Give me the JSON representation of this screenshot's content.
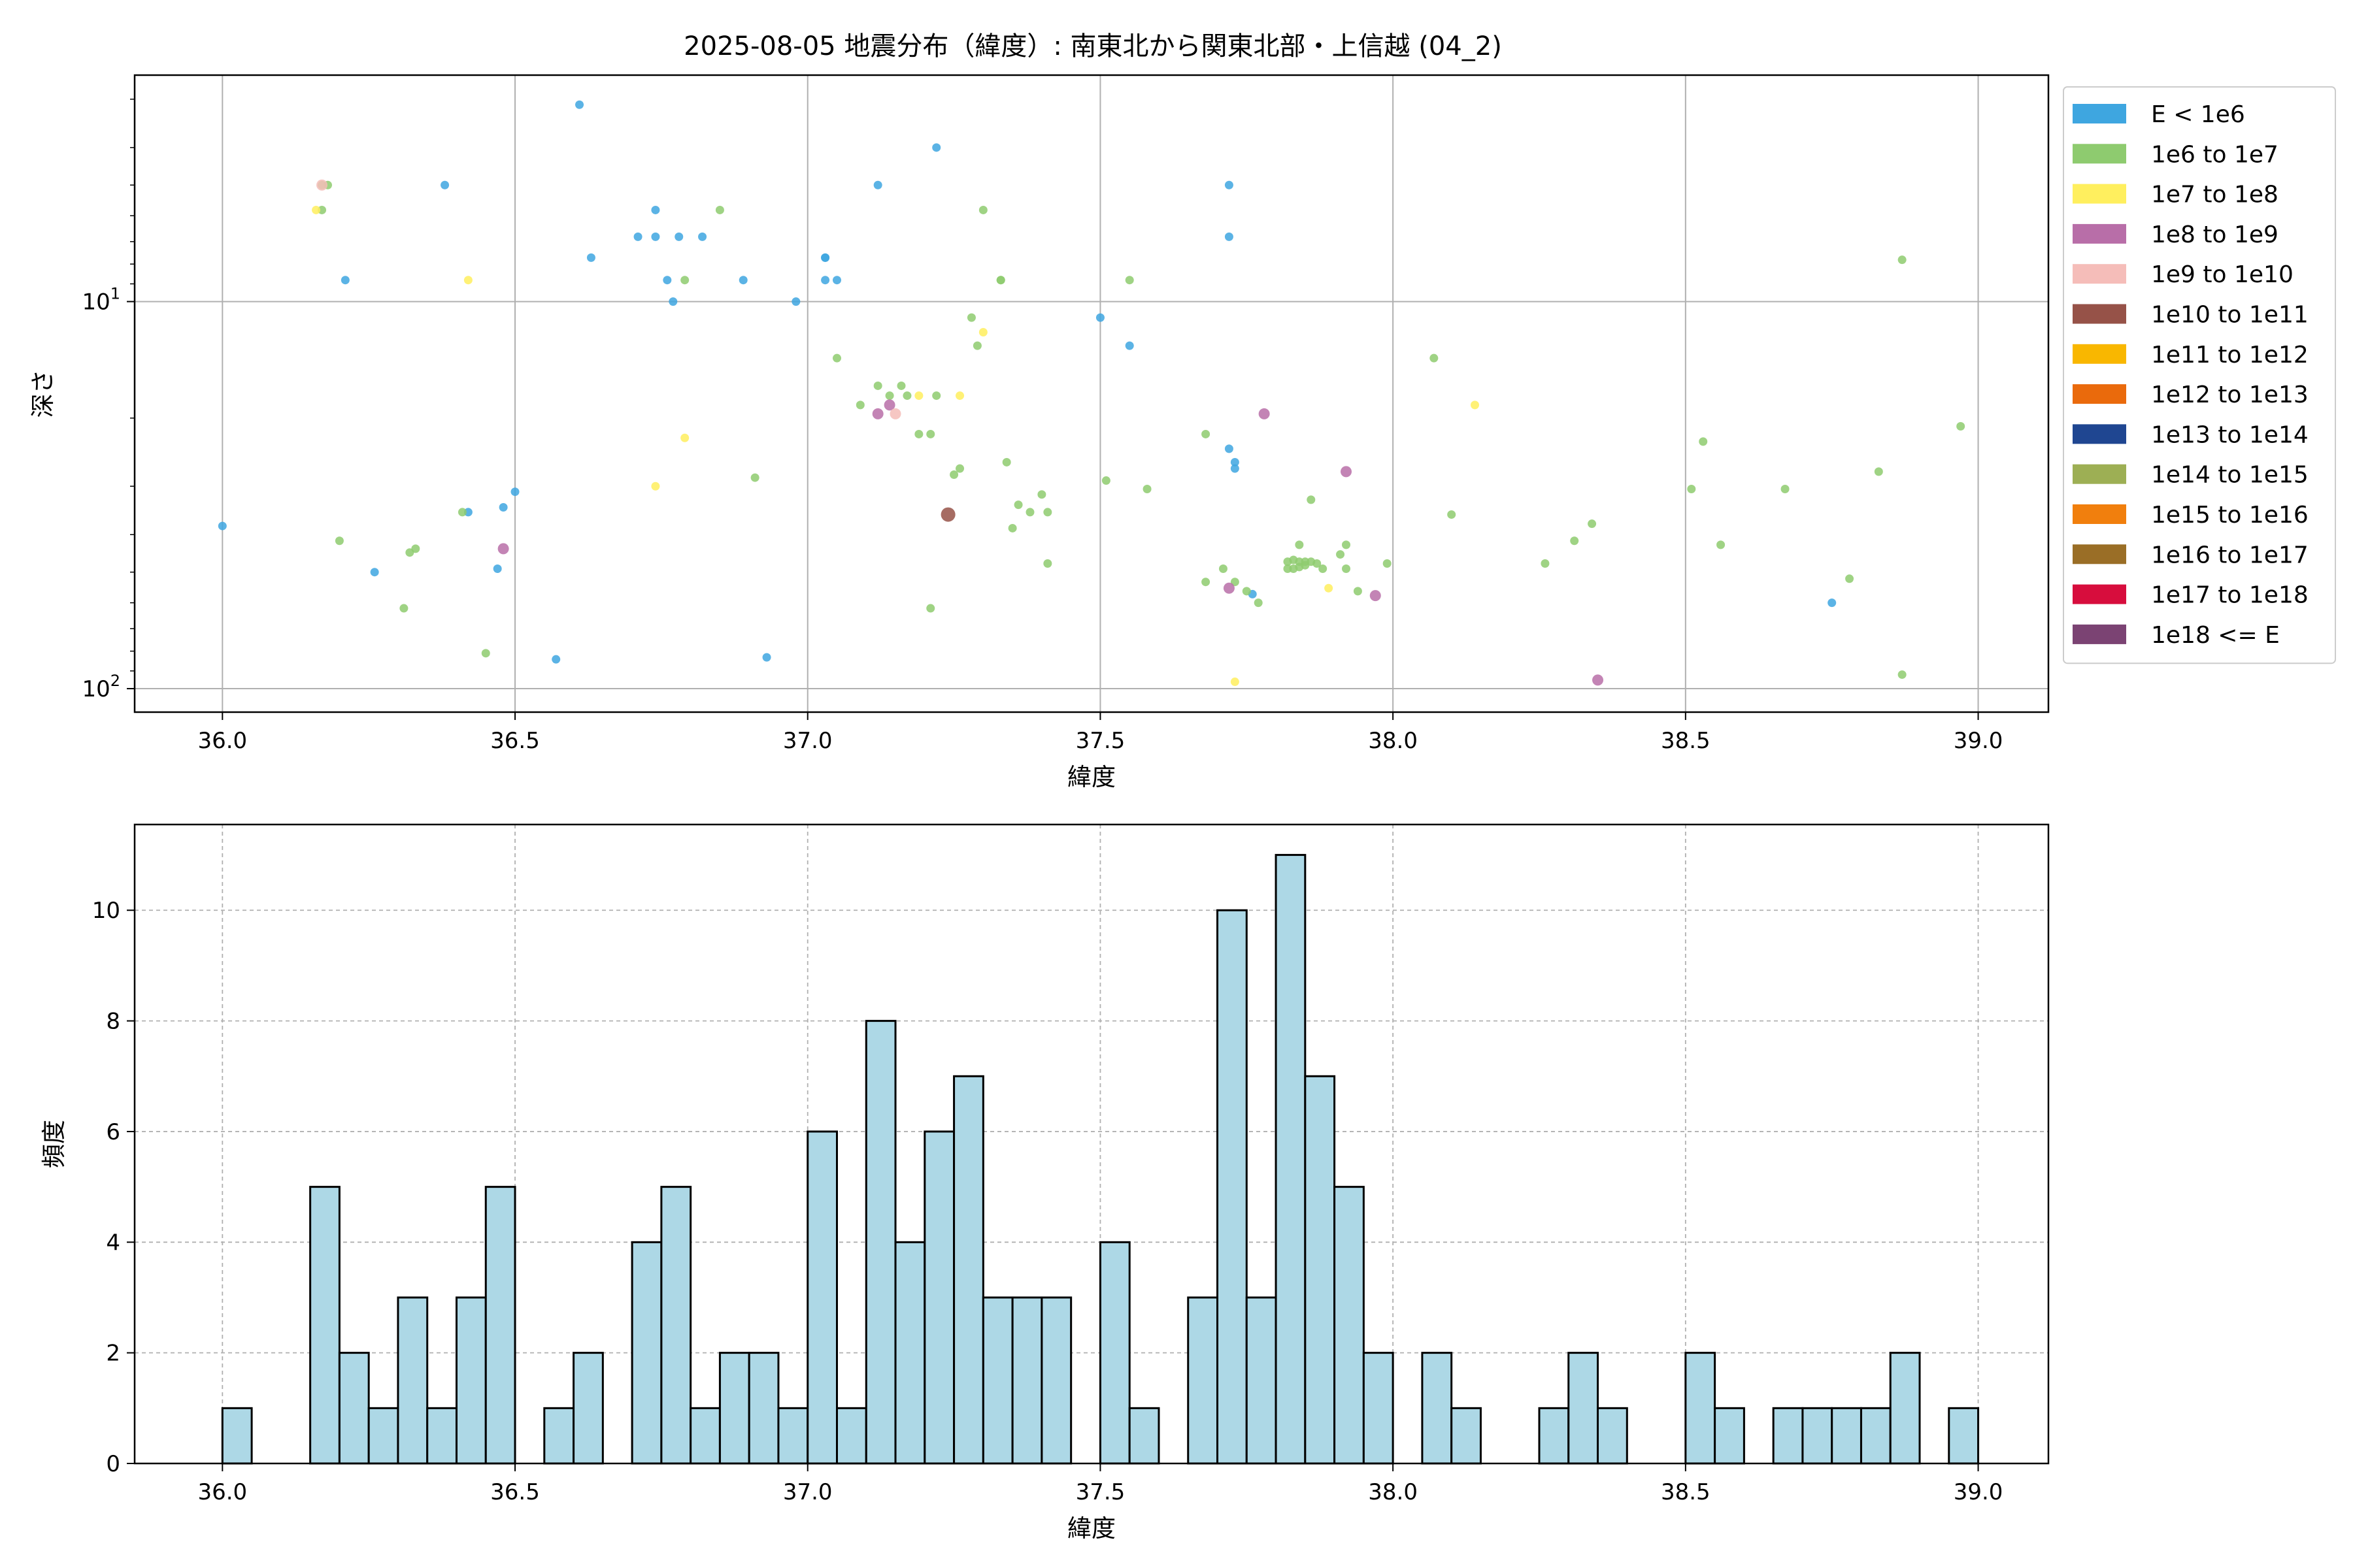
{
  "figure": {
    "title": "2025-08-05 地震分布（緯度）: 南東北から関東北部・上信越 (04_2)"
  },
  "colors": {
    "hist_fill": "#add8e6",
    "grid": "#b0b0b0",
    "scatter_default": "#3ea6e0"
  },
  "legend": {
    "placement": "outside-right",
    "entries": [
      {
        "label": "E < 1e6",
        "color": "#3ea6e0"
      },
      {
        "label": "1e6 to 1e7",
        "color": "#8ecb6f"
      },
      {
        "label": "1e7 to 1e8",
        "color": "#ffef5e"
      },
      {
        "label": "1e8 to 1e9",
        "color": "#b86ea8"
      },
      {
        "label": "1e9 to 1e10",
        "color": "#f5bdb9"
      },
      {
        "label": "1e10 to 1e11",
        "color": "#965248"
      },
      {
        "label": "1e11 to 1e12",
        "color": "#f9b700"
      },
      {
        "label": "1e12 to 1e13",
        "color": "#ea6a0c"
      },
      {
        "label": "1e13 to 1e14",
        "color": "#1f4691"
      },
      {
        "label": "1e14 to 1e15",
        "color": "#9daf54"
      },
      {
        "label": "1e15 to 1e16",
        "color": "#f17f0d"
      },
      {
        "label": "1e16 to 1e17",
        "color": "#9a6e26"
      },
      {
        "label": "1e17 to 1e18",
        "color": "#d70d3d"
      },
      {
        "label": "1e18 <= E",
        "color": "#7b4373"
      }
    ]
  },
  "chart_data": [
    {
      "type": "scatter",
      "xlabel": "緯度",
      "ylabel": "深さ",
      "xlim": [
        35.85,
        39.12
      ],
      "ylim": [
        115,
        2.6
      ],
      "yscale": "log",
      "y_inverted": true,
      "grid": true,
      "xticks": [
        "36.0",
        "36.5",
        "37.0",
        "37.5",
        "38.0",
        "38.5",
        "39.0"
      ],
      "yticks": [
        {
          "value": 10,
          "base": "10",
          "exp": "1"
        },
        {
          "value": 100,
          "base": "10",
          "exp": "2"
        }
      ],
      "points": [
        {
          "lat": 36.61,
          "depth": 3.1,
          "cls": 0
        },
        {
          "lat": 37.22,
          "depth": 4.0,
          "cls": 0
        },
        {
          "lat": 36.38,
          "depth": 5.0,
          "cls": 0
        },
        {
          "lat": 37.12,
          "depth": 5.0,
          "cls": 0
        },
        {
          "lat": 37.72,
          "depth": 5.0,
          "cls": 0
        },
        {
          "lat": 36.74,
          "depth": 5.8,
          "cls": 0
        },
        {
          "lat": 36.71,
          "depth": 6.8,
          "cls": 0
        },
        {
          "lat": 36.74,
          "depth": 6.8,
          "cls": 0
        },
        {
          "lat": 36.78,
          "depth": 6.8,
          "cls": 0
        },
        {
          "lat": 36.82,
          "depth": 6.8,
          "cls": 0
        },
        {
          "lat": 37.72,
          "depth": 6.8,
          "cls": 0
        },
        {
          "lat": 36.63,
          "depth": 7.7,
          "cls": 0
        },
        {
          "lat": 37.03,
          "depth": 7.7,
          "cls": 0
        },
        {
          "lat": 37.03,
          "depth": 7.7,
          "cls": 0
        },
        {
          "lat": 36.21,
          "depth": 8.8,
          "cls": 0
        },
        {
          "lat": 36.76,
          "depth": 8.8,
          "cls": 0
        },
        {
          "lat": 36.89,
          "depth": 8.8,
          "cls": 0
        },
        {
          "lat": 37.03,
          "depth": 8.8,
          "cls": 0
        },
        {
          "lat": 37.05,
          "depth": 8.8,
          "cls": 0
        },
        {
          "lat": 36.77,
          "depth": 10.0,
          "cls": 0
        },
        {
          "lat": 36.98,
          "depth": 10.0,
          "cls": 0
        },
        {
          "lat": 37.5,
          "depth": 11.0,
          "cls": 0
        },
        {
          "lat": 37.55,
          "depth": 13.0,
          "cls": 0
        },
        {
          "lat": 37.72,
          "depth": 24.0,
          "cls": 0
        },
        {
          "lat": 37.73,
          "depth": 26.0,
          "cls": 0
        },
        {
          "lat": 37.73,
          "depth": 27.0,
          "cls": 0
        },
        {
          "lat": 36.5,
          "depth": 31.0,
          "cls": 0
        },
        {
          "lat": 36.48,
          "depth": 34.0,
          "cls": 0
        },
        {
          "lat": 36.42,
          "depth": 35.0,
          "cls": 0
        },
        {
          "lat": 36.0,
          "depth": 38.0,
          "cls": 0
        },
        {
          "lat": 36.47,
          "depth": 49.0,
          "cls": 0
        },
        {
          "lat": 36.26,
          "depth": 50.0,
          "cls": 0
        },
        {
          "lat": 37.76,
          "depth": 57.0,
          "cls": 0
        },
        {
          "lat": 38.75,
          "depth": 60.0,
          "cls": 0
        },
        {
          "lat": 36.57,
          "depth": 84.0,
          "cls": 0
        },
        {
          "lat": 36.93,
          "depth": 83.0,
          "cls": 0
        },
        {
          "lat": 36.17,
          "depth": 5.0,
          "cls": 1
        },
        {
          "lat": 36.18,
          "depth": 5.0,
          "cls": 1
        },
        {
          "lat": 36.17,
          "depth": 5.8,
          "cls": 1
        },
        {
          "lat": 36.85,
          "depth": 5.8,
          "cls": 1
        },
        {
          "lat": 37.3,
          "depth": 5.8,
          "cls": 1
        },
        {
          "lat": 36.79,
          "depth": 8.8,
          "cls": 1
        },
        {
          "lat": 37.33,
          "depth": 8.8,
          "cls": 1
        },
        {
          "lat": 37.33,
          "depth": 8.8,
          "cls": 1
        },
        {
          "lat": 37.55,
          "depth": 8.8,
          "cls": 1
        },
        {
          "lat": 38.87,
          "depth": 7.8,
          "cls": 1
        },
        {
          "lat": 37.28,
          "depth": 11.0,
          "cls": 1
        },
        {
          "lat": 37.29,
          "depth": 13.0,
          "cls": 1
        },
        {
          "lat": 37.05,
          "depth": 14.0,
          "cls": 1
        },
        {
          "lat": 38.07,
          "depth": 14.0,
          "cls": 1
        },
        {
          "lat": 37.12,
          "depth": 16.5,
          "cls": 1
        },
        {
          "lat": 37.14,
          "depth": 17.5,
          "cls": 1
        },
        {
          "lat": 37.16,
          "depth": 16.5,
          "cls": 1
        },
        {
          "lat": 37.09,
          "depth": 18.5,
          "cls": 1
        },
        {
          "lat": 37.17,
          "depth": 17.5,
          "cls": 1
        },
        {
          "lat": 37.22,
          "depth": 17.5,
          "cls": 1
        },
        {
          "lat": 37.19,
          "depth": 22.0,
          "cls": 1
        },
        {
          "lat": 37.21,
          "depth": 22.0,
          "cls": 1
        },
        {
          "lat": 38.97,
          "depth": 21.0,
          "cls": 1
        },
        {
          "lat": 37.68,
          "depth": 22.0,
          "cls": 1
        },
        {
          "lat": 38.53,
          "depth": 23.0,
          "cls": 1
        },
        {
          "lat": 37.25,
          "depth": 28.0,
          "cls": 1
        },
        {
          "lat": 37.26,
          "depth": 27.0,
          "cls": 1
        },
        {
          "lat": 37.34,
          "depth": 26.0,
          "cls": 1
        },
        {
          "lat": 36.91,
          "depth": 28.5,
          "cls": 1
        },
        {
          "lat": 37.51,
          "depth": 29.0,
          "cls": 1
        },
        {
          "lat": 37.58,
          "depth": 30.5,
          "cls": 1
        },
        {
          "lat": 38.51,
          "depth": 30.5,
          "cls": 1
        },
        {
          "lat": 38.67,
          "depth": 30.5,
          "cls": 1
        },
        {
          "lat": 38.83,
          "depth": 27.5,
          "cls": 1
        },
        {
          "lat": 37.4,
          "depth": 31.5,
          "cls": 1
        },
        {
          "lat": 37.86,
          "depth": 32.5,
          "cls": 1
        },
        {
          "lat": 37.36,
          "depth": 33.5,
          "cls": 1
        },
        {
          "lat": 37.38,
          "depth": 35.0,
          "cls": 1
        },
        {
          "lat": 37.41,
          "depth": 35.0,
          "cls": 1
        },
        {
          "lat": 36.41,
          "depth": 35.0,
          "cls": 1
        },
        {
          "lat": 38.1,
          "depth": 35.5,
          "cls": 1
        },
        {
          "lat": 37.35,
          "depth": 38.5,
          "cls": 1
        },
        {
          "lat": 38.34,
          "depth": 37.5,
          "cls": 1
        },
        {
          "lat": 36.2,
          "depth": 41.5,
          "cls": 1
        },
        {
          "lat": 38.31,
          "depth": 41.5,
          "cls": 1
        },
        {
          "lat": 38.56,
          "depth": 42.5,
          "cls": 1
        },
        {
          "lat": 36.33,
          "depth": 43.5,
          "cls": 1
        },
        {
          "lat": 36.32,
          "depth": 44.5,
          "cls": 1
        },
        {
          "lat": 37.71,
          "depth": 49.0,
          "cls": 1
        },
        {
          "lat": 37.73,
          "depth": 53.0,
          "cls": 1
        },
        {
          "lat": 37.68,
          "depth": 53.0,
          "cls": 1
        },
        {
          "lat": 37.77,
          "depth": 60.0,
          "cls": 1
        },
        {
          "lat": 37.75,
          "depth": 56.0,
          "cls": 1
        },
        {
          "lat": 37.82,
          "depth": 47.0,
          "cls": 1
        },
        {
          "lat": 37.83,
          "depth": 46.5,
          "cls": 1
        },
        {
          "lat": 37.84,
          "depth": 47.0,
          "cls": 1
        },
        {
          "lat": 37.85,
          "depth": 47.0,
          "cls": 1
        },
        {
          "lat": 37.86,
          "depth": 47.0,
          "cls": 1
        },
        {
          "lat": 37.87,
          "depth": 47.5,
          "cls": 1
        },
        {
          "lat": 37.82,
          "depth": 49.0,
          "cls": 1
        },
        {
          "lat": 37.83,
          "depth": 49.0,
          "cls": 1
        },
        {
          "lat": 37.84,
          "depth": 48.5,
          "cls": 1
        },
        {
          "lat": 37.85,
          "depth": 48.0,
          "cls": 1
        },
        {
          "lat": 37.84,
          "depth": 42.5,
          "cls": 1
        },
        {
          "lat": 37.88,
          "depth": 49.0,
          "cls": 1
        },
        {
          "lat": 37.91,
          "depth": 45.0,
          "cls": 1
        },
        {
          "lat": 37.92,
          "depth": 42.5,
          "cls": 1
        },
        {
          "lat": 37.92,
          "depth": 49.0,
          "cls": 1
        },
        {
          "lat": 37.99,
          "depth": 47.5,
          "cls": 1
        },
        {
          "lat": 38.26,
          "depth": 47.5,
          "cls": 1
        },
        {
          "lat": 37.94,
          "depth": 56.0,
          "cls": 1
        },
        {
          "lat": 38.78,
          "depth": 52.0,
          "cls": 1
        },
        {
          "lat": 37.41,
          "depth": 47.5,
          "cls": 1
        },
        {
          "lat": 36.31,
          "depth": 62.0,
          "cls": 1
        },
        {
          "lat": 37.21,
          "depth": 62.0,
          "cls": 1
        },
        {
          "lat": 36.45,
          "depth": 81.0,
          "cls": 1
        },
        {
          "lat": 38.87,
          "depth": 92.0,
          "cls": 1
        },
        {
          "lat": 36.16,
          "depth": 5.8,
          "cls": 2
        },
        {
          "lat": 36.42,
          "depth": 8.8,
          "cls": 2
        },
        {
          "lat": 37.3,
          "depth": 12.0,
          "cls": 2
        },
        {
          "lat": 37.19,
          "depth": 17.5,
          "cls": 2
        },
        {
          "lat": 37.26,
          "depth": 17.5,
          "cls": 2
        },
        {
          "lat": 38.14,
          "depth": 18.5,
          "cls": 2
        },
        {
          "lat": 36.79,
          "depth": 22.5,
          "cls": 2
        },
        {
          "lat": 36.74,
          "depth": 30.0,
          "cls": 2
        },
        {
          "lat": 37.89,
          "depth": 55.0,
          "cls": 2
        },
        {
          "lat": 37.73,
          "depth": 96.0,
          "cls": 2
        },
        {
          "lat": 37.14,
          "depth": 18.5,
          "cls": 3
        },
        {
          "lat": 37.12,
          "depth": 19.5,
          "cls": 3
        },
        {
          "lat": 37.78,
          "depth": 19.5,
          "cls": 3
        },
        {
          "lat": 37.92,
          "depth": 27.5,
          "cls": 3
        },
        {
          "lat": 36.48,
          "depth": 43.5,
          "cls": 3
        },
        {
          "lat": 37.72,
          "depth": 55.0,
          "cls": 3
        },
        {
          "lat": 37.97,
          "depth": 57.5,
          "cls": 3
        },
        {
          "lat": 38.35,
          "depth": 95.0,
          "cls": 3
        },
        {
          "lat": 36.17,
          "depth": 5.0,
          "cls": 4
        },
        {
          "lat": 37.15,
          "depth": 19.5,
          "cls": 4
        },
        {
          "lat": 37.24,
          "depth": 35.5,
          "cls": 5
        }
      ]
    },
    {
      "type": "bar",
      "subtype": "histogram",
      "xlabel": "緯度",
      "ylabel": "頻度",
      "xlim": [
        35.85,
        39.12
      ],
      "ylim": [
        0,
        11.55
      ],
      "grid": true,
      "xticks": [
        "36.0",
        "36.5",
        "37.0",
        "37.5",
        "38.0",
        "38.5",
        "39.0"
      ],
      "yticks": [
        "0",
        "2",
        "4",
        "6",
        "8",
        "10"
      ],
      "bin_start": 36.0,
      "bin_width": 0.05,
      "values": [
        1,
        0,
        0,
        5,
        2,
        1,
        3,
        1,
        3,
        5,
        0,
        1,
        2,
        0,
        4,
        5,
        1,
        2,
        2,
        1,
        6,
        1,
        8,
        4,
        6,
        7,
        3,
        3,
        3,
        0,
        4,
        1,
        0,
        3,
        10,
        3,
        11,
        7,
        5,
        2,
        0,
        2,
        1,
        0,
        0,
        1,
        2,
        1,
        0,
        0,
        2,
        1,
        0,
        1,
        1,
        1,
        1,
        2,
        0,
        1
      ]
    }
  ]
}
